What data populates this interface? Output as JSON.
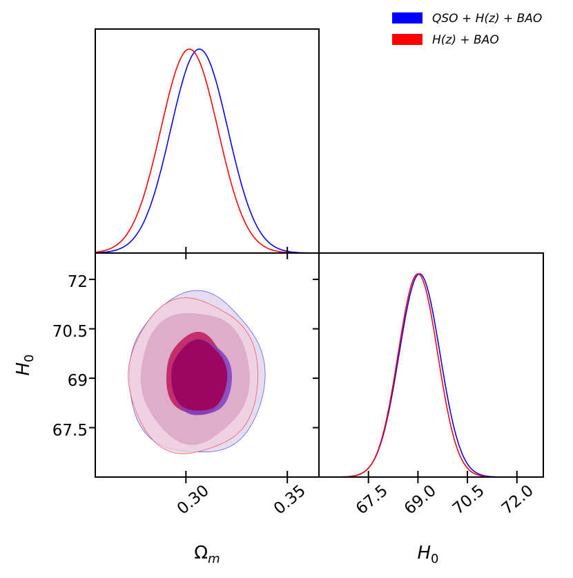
{
  "chart_data": {
    "type": "corner",
    "parameters": [
      {
        "name": "Omega_m",
        "label_main": "Ω",
        "label_sub": "m",
        "ticks": [
          0.3,
          0.35
        ],
        "tick_labels": [
          "0.30",
          "0.35"
        ],
        "range": [
          0.2553,
          0.3656
        ]
      },
      {
        "name": "H0",
        "label_main": "H",
        "label_sub": "0",
        "ticks": [
          67.5,
          69.0,
          70.5,
          72.0
        ],
        "tick_labels_y": [
          "67.5",
          "69",
          "70.5",
          "72"
        ],
        "tick_labels_x": [
          "67.5",
          "69.0",
          "70.5",
          "72.0"
        ],
        "range": [
          66.0,
          72.8
        ]
      }
    ],
    "legend": {
      "placement": "top-right",
      "entries": [
        {
          "label": "QSO + H(z) + BAO",
          "color": "#0000ff"
        },
        {
          "label": "H(z) + BAO",
          "color": "#ff0000"
        }
      ]
    },
    "series": [
      {
        "name": "QSO + H(z) + BAO",
        "color": "#0000ff",
        "omega_m": {
          "mean": 0.3066,
          "sigma": 0.0141
        },
        "h0": {
          "mean": 69.05,
          "sigma": 0.62
        },
        "contour_1sigma": {
          "center": [
            0.3074,
            69.0
          ],
          "half_width": 0.015,
          "half_height": 1.15
        },
        "contour_2sigma": {
          "center": [
            0.3047,
            69.1
          ],
          "half_width": 0.0335,
          "half_height": 2.45
        },
        "contour_fill_1sigma": "#7f3fbf",
        "contour_fill_2sigma": "#dcd0ee"
      },
      {
        "name": "H(z) + BAO",
        "color": "#ff0000",
        "omega_m": {
          "mean": 0.3017,
          "sigma": 0.0141
        },
        "h0": {
          "mean": 69.0,
          "sigma": 0.6
        },
        "contour_1sigma": {
          "center": [
            0.305,
            69.1
          ],
          "half_width": 0.015,
          "half_height": 1.25
        },
        "contour_2sigma": {
          "center": [
            0.303,
            69.05
          ],
          "half_width": 0.032,
          "half_height": 2.35
        },
        "contour_fill_1sigma": "#c0185a",
        "contour_fill_2sigma": "#f2cfdb"
      }
    ],
    "overlap_fill_1sigma": "#9b0760",
    "overlap_fill_2sigma": "#d9a4c4"
  }
}
